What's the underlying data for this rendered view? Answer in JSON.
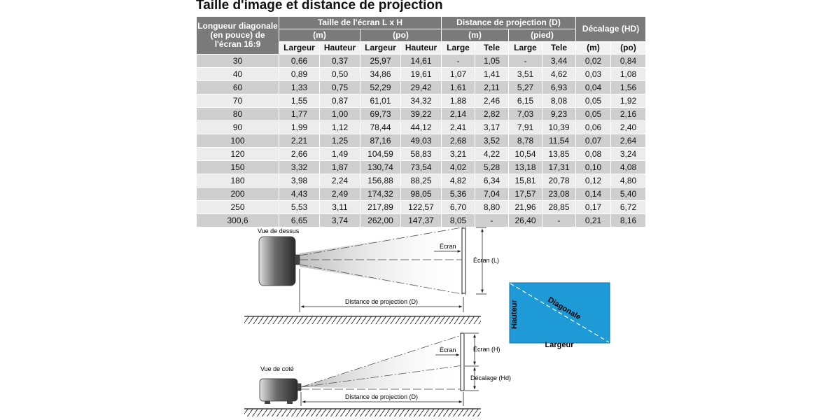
{
  "title": "Taille d'image et distance de projection",
  "table": {
    "headers": {
      "diagonal": "Longueur diagonale (en pouce) de l'écran 16:9",
      "screen_size": "Taille de l'écran L x H",
      "throw_distance": "Distance de projection (D)",
      "offset": "Décalage (HD)",
      "units": [
        "(m)",
        "(po)",
        "(m)",
        "(pied)",
        "(m)",
        "(po)"
      ],
      "subcols": [
        "Largeur",
        "Hauteur",
        "Largeur",
        "Hauteur",
        "Large",
        "Tele",
        "Large",
        "Tele"
      ]
    },
    "rows": [
      [
        "30",
        "0,66",
        "0,37",
        "25,97",
        "14,61",
        "-",
        "1,05",
        "-",
        "3,44",
        "0,02",
        "0,84"
      ],
      [
        "40",
        "0,89",
        "0,50",
        "34,86",
        "19,61",
        "1,07",
        "1,41",
        "3,51",
        "4,62",
        "0,03",
        "1,08"
      ],
      [
        "60",
        "1,33",
        "0,75",
        "52,29",
        "29,42",
        "1,61",
        "2,11",
        "5,27",
        "6,93",
        "0,04",
        "1,56"
      ],
      [
        "70",
        "1,55",
        "0,87",
        "61,01",
        "34,32",
        "1,88",
        "2,46",
        "6,15",
        "8,08",
        "0,05",
        "1,92"
      ],
      [
        "80",
        "1,77",
        "1,00",
        "69,73",
        "39,22",
        "2,14",
        "2,82",
        "7,03",
        "9,23",
        "0,05",
        "2,16"
      ],
      [
        "90",
        "1,99",
        "1,12",
        "78,44",
        "44,12",
        "2,41",
        "3,17",
        "7,91",
        "10,39",
        "0,06",
        "2,40"
      ],
      [
        "100",
        "2,21",
        "1,25",
        "87,16",
        "49,03",
        "2,68",
        "3,52",
        "8,78",
        "11,54",
        "0,07",
        "2,64"
      ],
      [
        "120",
        "2,66",
        "1,49",
        "104,59",
        "58,83",
        "3,21",
        "4,22",
        "10,54",
        "13,85",
        "0,08",
        "3,24"
      ],
      [
        "150",
        "3,32",
        "1,87",
        "130,74",
        "73,54",
        "4,02",
        "5,28",
        "13,18",
        "17,31",
        "0,10",
        "4,08"
      ],
      [
        "180",
        "3,98",
        "2,24",
        "156,88",
        "88,25",
        "4,82",
        "6,34",
        "15,81",
        "20,78",
        "0,12",
        "4,80"
      ],
      [
        "200",
        "4,43",
        "2,49",
        "174,32",
        "98,05",
        "5,36",
        "7,04",
        "17,57",
        "23,08",
        "0,14",
        "5,40"
      ],
      [
        "250",
        "5,53",
        "3,11",
        "217,89",
        "122,57",
        "6,70",
        "8,80",
        "21,96",
        "28,85",
        "0,17",
        "6,72"
      ],
      [
        "300,6",
        "6,65",
        "3,74",
        "262,00",
        "147,37",
        "8,05",
        "-",
        "26,40",
        "-",
        "0,21",
        "8,16"
      ]
    ]
  },
  "diagram": {
    "top_view": {
      "label": "Vue de dessus",
      "screen": "Écran",
      "screen_width": "Écran (L)",
      "distance": "Distance de projection (D)"
    },
    "side_view": {
      "label": "Vue de coté",
      "screen": "Écran",
      "screen_height": "Écran (H)",
      "offset": "Décalage (Hd)",
      "distance": "Distance de projection (D)"
    },
    "screen_box": {
      "height": "Hauteur",
      "diagonal": "Diagonale",
      "width": "Largeur",
      "fill": "#1e9ad6"
    }
  }
}
